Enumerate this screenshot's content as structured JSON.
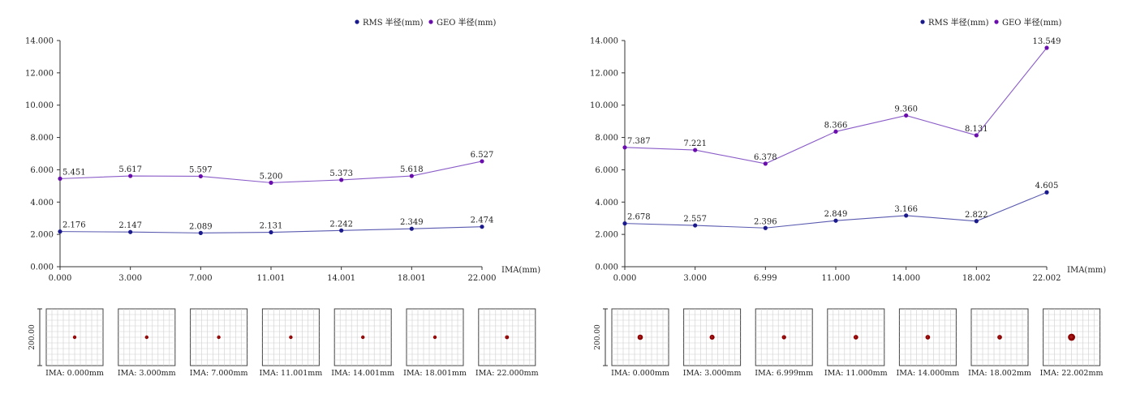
{
  "colors": {
    "rms": "#1a1a8c",
    "geo": "#6a0dad",
    "geo_line": "#8a5cc8",
    "rms_line": "#5a5ab0",
    "axis": "#333333",
    "spot": "#8b0000",
    "grid": "#cfcfcf"
  },
  "chart_data": [
    {
      "type": "line",
      "legend": {
        "placement": "top-right",
        "rms_label": "RMS 半径(mm)",
        "geo_label": "GEO 半径(mm)"
      },
      "x_label": "IMA(mm)",
      "categories": [
        "0.000",
        "3.000",
        "7.000",
        "11.001",
        "14.001",
        "18.001",
        "22.000"
      ],
      "ylim": [
        0,
        14
      ],
      "y_ticks": [
        "0.000",
        "2.000",
        "4.000",
        "6.000",
        "8.000",
        "10.000",
        "12.000",
        "14.000"
      ],
      "series": [
        {
          "name": "RMS 半径(mm)",
          "values": [
            2.176,
            2.147,
            2.089,
            2.131,
            2.242,
            2.349,
            2.474
          ],
          "labels": [
            "2.176",
            "2.147",
            "2.089",
            "2.131",
            "2.242",
            "2.349",
            "2.474"
          ]
        },
        {
          "name": "GEO 半径(mm)",
          "values": [
            5.451,
            5.617,
            5.597,
            5.2,
            5.373,
            5.618,
            6.527
          ],
          "labels": [
            "5.451",
            "5.617",
            "5.597",
            "5.200",
            "5.373",
            "5.618",
            "6.527"
          ]
        }
      ],
      "spot_scale_label": "200.00",
      "spots": [
        {
          "label": "IMA: 0.000mm",
          "spot_size": 1
        },
        {
          "label": "IMA: 3.000mm",
          "spot_size": 1
        },
        {
          "label": "IMA: 7.000mm",
          "spot_size": 1
        },
        {
          "label": "IMA: 11.001mm",
          "spot_size": 1
        },
        {
          "label": "IMA: 14.001mm",
          "spot_size": 1
        },
        {
          "label": "IMA: 18.001mm",
          "spot_size": 1
        },
        {
          "label": "IMA: 22.000mm",
          "spot_size": 1.1
        }
      ]
    },
    {
      "type": "line",
      "legend": {
        "placement": "top-right",
        "rms_label": "RMS 半径(mm)",
        "geo_label": "GEO 半径(mm)"
      },
      "x_label": "IMA(mm)",
      "categories": [
        "0.000",
        "3.000",
        "6.999",
        "11.000",
        "14.000",
        "18.002",
        "22.002"
      ],
      "ylim": [
        0,
        14
      ],
      "y_ticks": [
        "0.000",
        "2.000",
        "4.000",
        "6.000",
        "8.000",
        "10.000",
        "12.000",
        "14.000"
      ],
      "series": [
        {
          "name": "RMS 半径(mm)",
          "values": [
            2.678,
            2.557,
            2.396,
            2.849,
            3.166,
            2.822,
            4.605
          ],
          "labels": [
            "2.678",
            "2.557",
            "2.396",
            "2.849",
            "3.166",
            "2.822",
            "4.605"
          ]
        },
        {
          "name": "GEO 半径(mm)",
          "values": [
            7.387,
            7.221,
            6.378,
            8.366,
            9.36,
            8.131,
            13.549
          ],
          "labels": [
            "7.387",
            "7.221",
            "6.378",
            "8.366",
            "9.360",
            "8.131",
            "13.549"
          ]
        }
      ],
      "spot_scale_label": "200.00",
      "spots": [
        {
          "label": "IMA: 0.000mm",
          "spot_size": 1.5
        },
        {
          "label": "IMA: 3.000mm",
          "spot_size": 1.4
        },
        {
          "label": "IMA: 6.999mm",
          "spot_size": 1.2
        },
        {
          "label": "IMA: 11.000mm",
          "spot_size": 1.3
        },
        {
          "label": "IMA: 14.000mm",
          "spot_size": 1.3
        },
        {
          "label": "IMA: 18.002mm",
          "spot_size": 1.3
        },
        {
          "label": "IMA: 22.002mm",
          "spot_size": 2.0
        }
      ]
    }
  ]
}
